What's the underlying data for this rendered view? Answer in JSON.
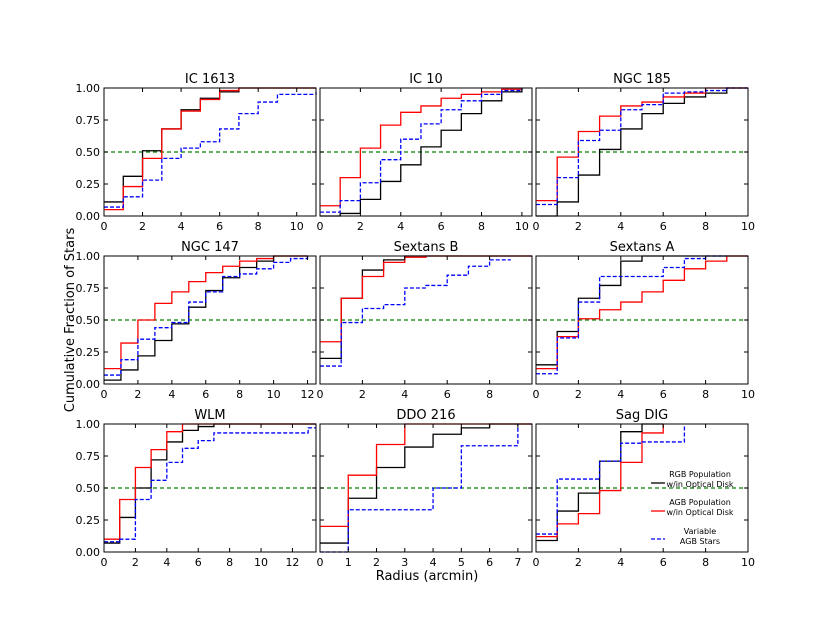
{
  "figure": {
    "ylabel": "Cumulative Fraction of Stars",
    "xlabel": "Radius (arcmin)"
  },
  "legend": [
    {
      "line1": "RGB Population",
      "line2": "w/in Optical Disk",
      "color": "#000000",
      "dash": false
    },
    {
      "line1": "AGB Population",
      "line2": "w/in Optical Disk",
      "color": "#ff0000",
      "dash": false
    },
    {
      "line1": "Variable",
      "line2": "AGB Stars",
      "color": "#0000ff",
      "dash": true
    }
  ],
  "colors": {
    "rgb": "#000000",
    "agb": "#ff0000",
    "var": "#0000ff",
    "ref": "#008000"
  },
  "chart_data": [
    {
      "type": "line",
      "step": true,
      "title": "IC 1613",
      "xlim": [
        0,
        11
      ],
      "xticks": [
        0,
        2,
        4,
        6,
        8,
        10
      ],
      "ylim": [
        0,
        1
      ],
      "yticks": [
        "0.00",
        "0.25",
        "0.50",
        "0.75",
        "1.00"
      ],
      "hline": 0.5,
      "series": [
        {
          "key": "rgb",
          "x": [
            0,
            1,
            2,
            3,
            4,
            5,
            6,
            7,
            11
          ],
          "y": [
            0.11,
            0.31,
            0.51,
            0.68,
            0.83,
            0.92,
            0.97,
            1.0,
            1.0
          ]
        },
        {
          "key": "agb",
          "x": [
            0,
            1,
            2,
            3,
            4,
            5,
            6,
            7,
            11
          ],
          "y": [
            0.05,
            0.23,
            0.45,
            0.68,
            0.82,
            0.91,
            0.98,
            1.0,
            1.0
          ]
        },
        {
          "key": "var",
          "x": [
            0,
            1,
            2,
            3,
            4,
            5,
            6,
            7,
            8,
            9,
            11
          ],
          "y": [
            0.07,
            0.15,
            0.28,
            0.45,
            0.53,
            0.58,
            0.68,
            0.8,
            0.89,
            0.95,
            0.97
          ]
        }
      ]
    },
    {
      "type": "line",
      "step": true,
      "title": "IC 10",
      "xlim": [
        0,
        10.5
      ],
      "xticks": [
        0,
        2,
        4,
        6,
        8,
        10
      ],
      "ylim": [
        0,
        1
      ],
      "yticks": [
        "",
        "",
        "",
        "",
        ""
      ],
      "hline": 0.5,
      "series": [
        {
          "key": "rgb",
          "x": [
            0,
            1,
            2,
            3,
            4,
            5,
            6,
            7,
            8,
            9,
            10
          ],
          "y": [
            0.0,
            0.02,
            0.13,
            0.27,
            0.4,
            0.54,
            0.67,
            0.8,
            0.9,
            0.97,
            1.0
          ]
        },
        {
          "key": "agb",
          "x": [
            0,
            1,
            2,
            3,
            4,
            5,
            6,
            7,
            8,
            9,
            10
          ],
          "y": [
            0.08,
            0.3,
            0.53,
            0.71,
            0.81,
            0.86,
            0.92,
            0.95,
            0.97,
            0.99,
            1.0
          ]
        },
        {
          "key": "var",
          "x": [
            0,
            1,
            2,
            3,
            4,
            5,
            6,
            7,
            8,
            9,
            10
          ],
          "y": [
            0.03,
            0.12,
            0.26,
            0.44,
            0.6,
            0.72,
            0.83,
            0.9,
            0.95,
            0.98,
            1.0
          ]
        }
      ]
    },
    {
      "type": "line",
      "step": true,
      "title": "NGC 185",
      "xlim": [
        0,
        10
      ],
      "xticks": [
        0,
        2,
        4,
        6,
        8,
        10
      ],
      "ylim": [
        0,
        1
      ],
      "yticks": [
        "",
        "",
        "",
        "",
        ""
      ],
      "hline": 0.5,
      "series": [
        {
          "key": "rgb",
          "x": [
            0,
            1,
            2,
            3,
            4,
            5,
            6,
            7,
            8,
            9,
            10
          ],
          "y": [
            0.0,
            0.11,
            0.32,
            0.52,
            0.68,
            0.8,
            0.88,
            0.93,
            0.96,
            1.0,
            1.0
          ]
        },
        {
          "key": "agb",
          "x": [
            0,
            1,
            2,
            3,
            4,
            5,
            6,
            7,
            8,
            9,
            10
          ],
          "y": [
            0.12,
            0.46,
            0.66,
            0.78,
            0.86,
            0.89,
            0.93,
            0.96,
            1.0,
            1.0,
            1.0
          ]
        },
        {
          "key": "var",
          "x": [
            0,
            1,
            2,
            3,
            4,
            5,
            6,
            7,
            8,
            9,
            10
          ],
          "y": [
            0.09,
            0.3,
            0.59,
            0.67,
            0.83,
            0.87,
            0.96,
            0.97,
            0.98,
            1.0,
            1.0
          ]
        }
      ]
    },
    {
      "type": "line",
      "step": true,
      "title": "NGC 147",
      "xlim": [
        0,
        12.5
      ],
      "xticks": [
        0,
        2,
        4,
        6,
        8,
        10,
        12
      ],
      "ylim": [
        0,
        1
      ],
      "yticks": [
        "0.00",
        "0.25",
        "0.50",
        "0.75",
        "1.00"
      ],
      "hline": 0.5,
      "series": [
        {
          "key": "rgb",
          "x": [
            0,
            1,
            2,
            3,
            4,
            5,
            6,
            7,
            8,
            9,
            10,
            12
          ],
          "y": [
            0.03,
            0.11,
            0.22,
            0.34,
            0.47,
            0.6,
            0.73,
            0.83,
            0.91,
            0.96,
            1.0,
            1.0
          ]
        },
        {
          "key": "agb",
          "x": [
            0,
            1,
            2,
            3,
            4,
            5,
            6,
            7,
            8,
            9,
            10,
            12
          ],
          "y": [
            0.12,
            0.32,
            0.5,
            0.63,
            0.72,
            0.8,
            0.87,
            0.92,
            0.96,
            0.98,
            1.0,
            1.0
          ]
        },
        {
          "key": "var",
          "x": [
            0,
            1,
            2,
            3,
            4,
            5,
            6,
            7,
            8,
            9,
            10,
            11,
            12
          ],
          "y": [
            0.07,
            0.19,
            0.35,
            0.44,
            0.48,
            0.64,
            0.72,
            0.84,
            0.86,
            0.9,
            0.95,
            0.98,
            1.0
          ]
        }
      ]
    },
    {
      "type": "line",
      "step": true,
      "title": "Sextans B",
      "xlim": [
        0,
        10
      ],
      "xticks": [
        0,
        2,
        4,
        6,
        8
      ],
      "ylim": [
        0,
        1
      ],
      "yticks": [
        "",
        "",
        "",
        "",
        ""
      ],
      "hline": 0.5,
      "series": [
        {
          "key": "rgb",
          "x": [
            0,
            1,
            2,
            3,
            4,
            10
          ],
          "y": [
            0.2,
            0.67,
            0.89,
            0.97,
            1.0,
            1.0
          ]
        },
        {
          "key": "agb",
          "x": [
            0,
            1,
            2,
            3,
            4,
            5,
            10
          ],
          "y": [
            0.33,
            0.67,
            0.84,
            0.95,
            0.99,
            1.0,
            1.0
          ]
        },
        {
          "key": "var",
          "x": [
            0,
            1,
            2,
            3,
            4,
            5,
            6,
            7,
            8,
            9
          ],
          "y": [
            0.14,
            0.48,
            0.59,
            0.62,
            0.75,
            0.77,
            0.85,
            0.92,
            0.97,
            0.97
          ]
        }
      ]
    },
    {
      "type": "line",
      "step": true,
      "title": "Sextans A",
      "xlim": [
        0,
        10
      ],
      "xticks": [
        0,
        2,
        4,
        6,
        8,
        10
      ],
      "ylim": [
        0,
        1
      ],
      "yticks": [
        "",
        "",
        "",
        "",
        ""
      ],
      "hline": 0.5,
      "series": [
        {
          "key": "rgb",
          "x": [
            0,
            1,
            2,
            3,
            4,
            5,
            10
          ],
          "y": [
            0.15,
            0.41,
            0.67,
            0.77,
            0.96,
            1.0,
            1.0
          ]
        },
        {
          "key": "agb",
          "x": [
            0,
            1,
            2,
            3,
            4,
            5,
            6,
            7,
            8,
            9,
            10
          ],
          "y": [
            0.12,
            0.37,
            0.51,
            0.58,
            0.64,
            0.72,
            0.81,
            0.9,
            0.96,
            1.0,
            1.0
          ]
        },
        {
          "key": "var",
          "x": [
            0,
            1,
            2,
            3,
            4,
            5,
            6,
            7,
            8,
            9
          ],
          "y": [
            0.08,
            0.36,
            0.64,
            0.84,
            0.84,
            0.84,
            0.91,
            0.98,
            1.0,
            1.0
          ]
        }
      ]
    },
    {
      "type": "line",
      "step": true,
      "title": "WLM",
      "xlim": [
        0,
        13.5
      ],
      "xticks": [
        0,
        2,
        4,
        6,
        8,
        10,
        12
      ],
      "ylim": [
        0,
        1
      ],
      "yticks": [
        "0.00",
        "0.25",
        "0.50",
        "0.75",
        "1.00"
      ],
      "hline": 0.5,
      "series": [
        {
          "key": "rgb",
          "x": [
            0,
            1,
            2,
            3,
            4,
            5,
            6,
            7,
            13.5
          ],
          "y": [
            0.07,
            0.27,
            0.5,
            0.72,
            0.86,
            0.95,
            0.98,
            1.0,
            1.0
          ]
        },
        {
          "key": "agb",
          "x": [
            0,
            1,
            2,
            3,
            4,
            5,
            6,
            13.5
          ],
          "y": [
            0.1,
            0.41,
            0.66,
            0.8,
            0.94,
            1.0,
            1.0,
            1.0
          ]
        },
        {
          "key": "var",
          "x": [
            0,
            1,
            2,
            3,
            4,
            5,
            6,
            7,
            13,
            13.5
          ],
          "y": [
            0.08,
            0.1,
            0.41,
            0.56,
            0.7,
            0.81,
            0.87,
            0.93,
            0.97,
            0.97
          ]
        }
      ]
    },
    {
      "type": "line",
      "step": true,
      "title": "DDO 216",
      "xlim": [
        0,
        7.5
      ],
      "xticks": [
        0,
        1,
        2,
        3,
        4,
        5,
        6,
        7
      ],
      "ylim": [
        0,
        1
      ],
      "yticks": [
        "",
        "",
        "",
        "",
        ""
      ],
      "hline": 0.5,
      "series": [
        {
          "key": "rgb",
          "x": [
            0,
            1,
            2,
            3,
            4,
            5,
            6,
            7.5
          ],
          "y": [
            0.07,
            0.42,
            0.66,
            0.82,
            0.92,
            0.97,
            1.0,
            1.0
          ]
        },
        {
          "key": "agb",
          "x": [
            0,
            1,
            2,
            3,
            7.5
          ],
          "y": [
            0.2,
            0.6,
            0.84,
            1.0,
            1.0
          ]
        },
        {
          "key": "var",
          "x": [
            0,
            1,
            4,
            5,
            7
          ],
          "y": [
            0.0,
            0.33,
            0.5,
            0.83,
            1.0
          ]
        }
      ]
    },
    {
      "type": "line",
      "step": true,
      "title": "Sag DIG",
      "xlim": [
        0,
        10
      ],
      "xticks": [
        0,
        2,
        4,
        6,
        8,
        10
      ],
      "ylim": [
        0,
        1
      ],
      "yticks": [
        "",
        "",
        "",
        "",
        ""
      ],
      "hline": 0.5,
      "series": [
        {
          "key": "rgb",
          "x": [
            0,
            1,
            2,
            3,
            4,
            5,
            6
          ],
          "y": [
            0.09,
            0.32,
            0.46,
            0.71,
            0.94,
            1.0,
            1.0
          ]
        },
        {
          "key": "agb",
          "x": [
            0,
            1,
            2,
            3,
            4,
            5,
            6
          ],
          "y": [
            0.12,
            0.22,
            0.3,
            0.48,
            0.7,
            0.93,
            1.0
          ]
        },
        {
          "key": "var",
          "x": [
            0,
            1,
            3,
            4,
            5,
            6,
            7
          ],
          "y": [
            0.14,
            0.57,
            0.71,
            0.85,
            0.86,
            0.86,
            1.0
          ]
        }
      ]
    }
  ]
}
